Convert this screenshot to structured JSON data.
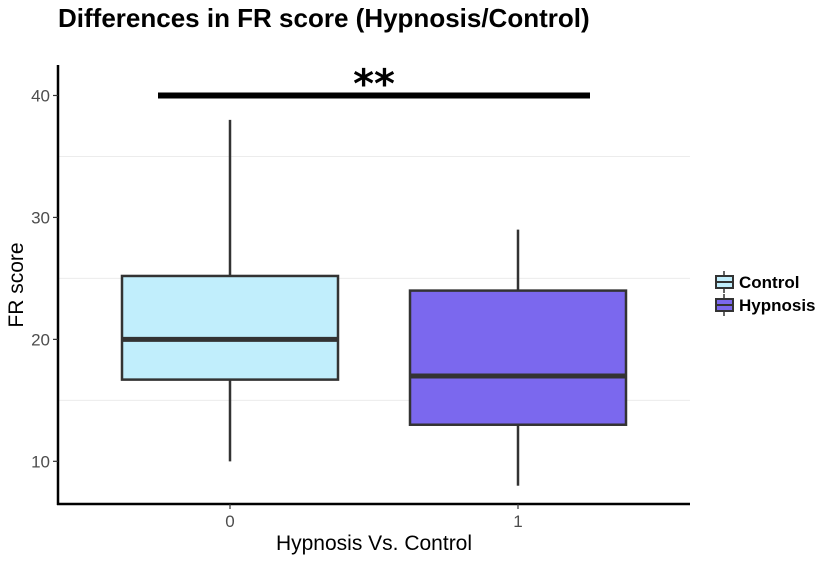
{
  "chart_data": {
    "type": "box",
    "title": "Differences in FR score (Hypnosis/Control)",
    "xlabel": "Hypnosis Vs. Control",
    "ylabel": "FR score",
    "categories": [
      "0",
      "1"
    ],
    "ylim": [
      6.5,
      42.5
    ],
    "yticks": [
      10,
      20,
      30,
      40
    ],
    "grid": "minor horizontal lines",
    "legend_position": "right",
    "series": [
      {
        "name": "Control",
        "category": "0",
        "color": "#c1eefc",
        "whisker_low": 10,
        "q1": 16.7,
        "median": 20,
        "q3": 25.2,
        "whisker_high": 38
      },
      {
        "name": "Hypnosis",
        "category": "1",
        "color": "#7b68ee",
        "whisker_low": 8,
        "q1": 13,
        "median": 17,
        "q3": 24,
        "whisker_high": 29
      }
    ],
    "annotation": {
      "text": "**",
      "y": 40,
      "from_category": "0",
      "to_category": "1"
    }
  }
}
